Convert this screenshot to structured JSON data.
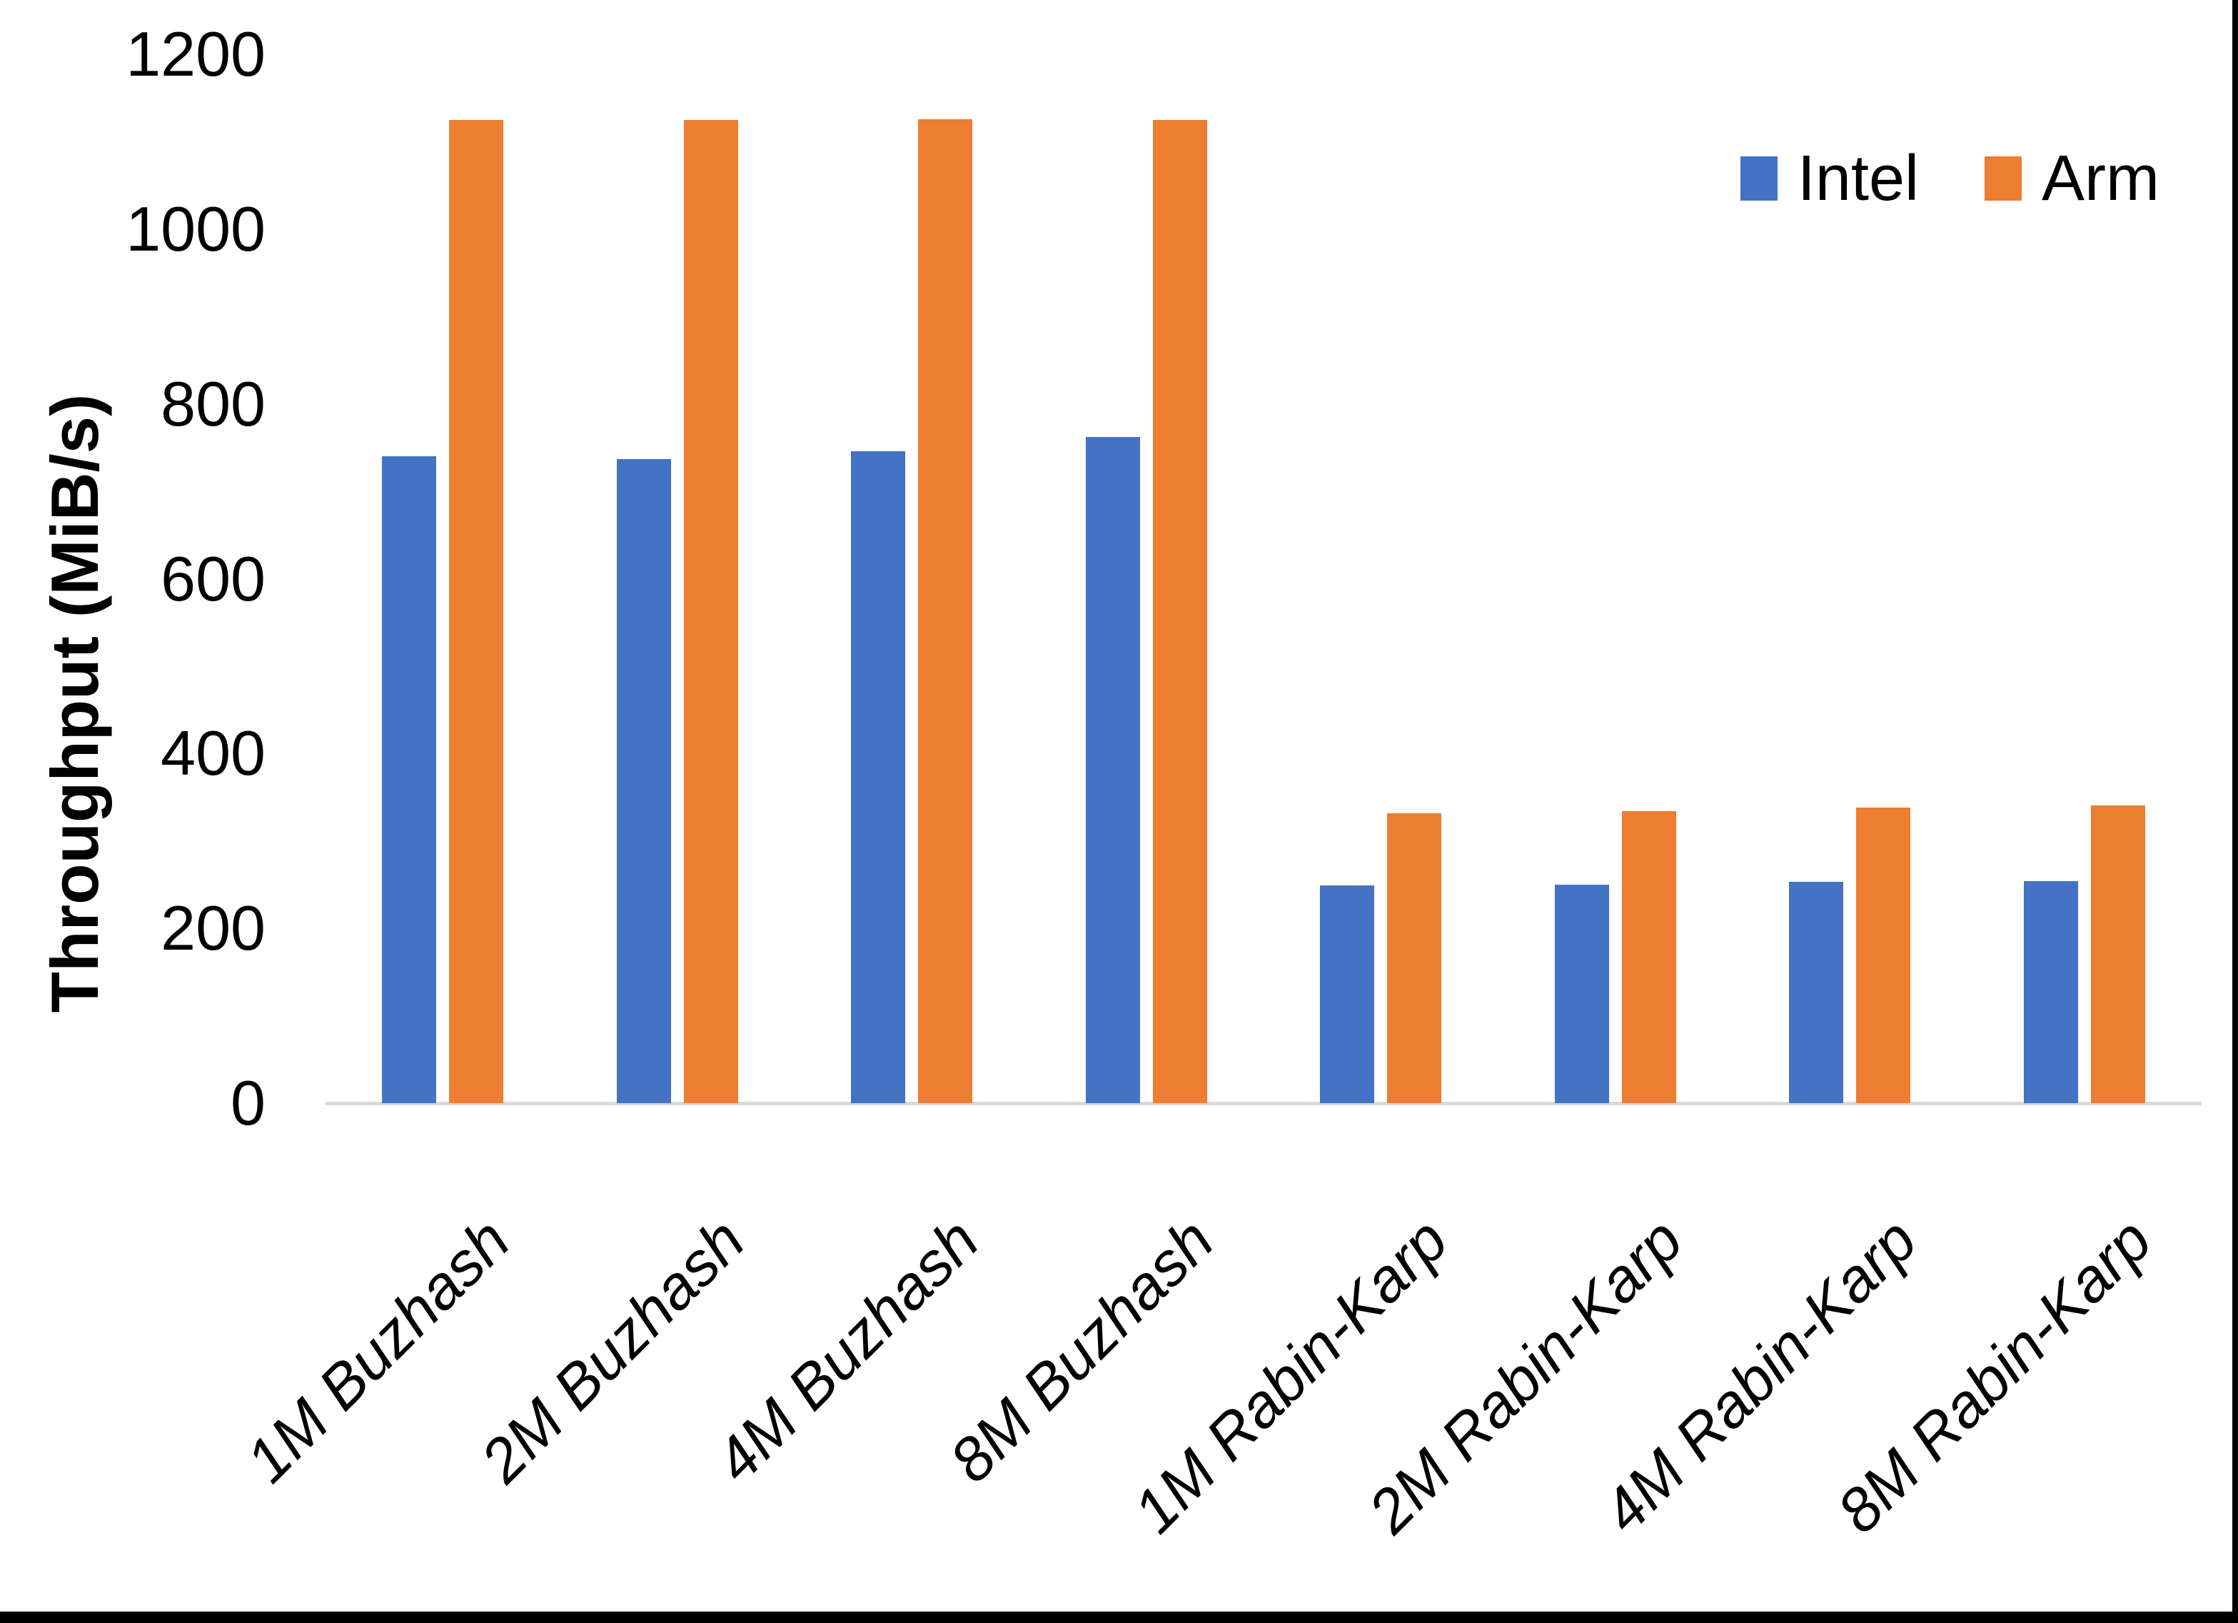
{
  "chart_data": {
    "type": "bar",
    "title": "",
    "xlabel": "",
    "ylabel": "Throughput (MiB/s)",
    "categories": [
      "1M Buzhash",
      "2M Buzhash",
      "4M Buzhash",
      "8M Buzhash",
      "1M Rabin-Karp",
      "2M Rabin-Karp",
      "4M Rabin-Karp",
      "8M Rabin-Karp"
    ],
    "series": [
      {
        "name": "Intel",
        "color": "#4472C4",
        "values": [
          740,
          737,
          746,
          762,
          249,
          250,
          253,
          254
        ]
      },
      {
        "name": "Arm",
        "color": "#ED7D31",
        "values": [
          1125,
          1125,
          1126,
          1125,
          332,
          334,
          338,
          341
        ]
      }
    ],
    "ylim": [
      0,
      1200
    ],
    "yticks": [
      0,
      200,
      400,
      600,
      800,
      1000,
      1200
    ],
    "grid": false,
    "legend_position": "top-right",
    "axis_line_color": "#D9D9D9",
    "background_color": "#FFFFFF",
    "text_color": "#000000",
    "category_label_style": "italic, rotated 45deg",
    "frame_border_color": "#000000"
  }
}
